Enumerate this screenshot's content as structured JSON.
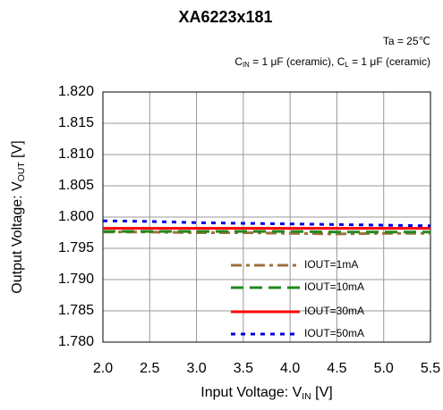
{
  "chart_data": {
    "type": "line",
    "title": "XA6223x181",
    "annotation": "Ta = 25℃",
    "conditions": [
      "C",
      "IN",
      " = 1 μF (ceramic), C",
      "L",
      " = 1 μF (ceramic)"
    ],
    "xlabel": [
      "Input Voltage: V",
      "IN",
      " [V]"
    ],
    "ylabel": [
      "Output Voltage: V",
      "OUT",
      " [V]"
    ],
    "x": [
      2.0,
      2.5,
      3.0,
      3.5,
      4.0,
      4.5,
      5.0,
      5.5
    ],
    "series": [
      {
        "name": "IOUT=1mA",
        "color": "#a0703a",
        "style": "dashdot",
        "values": [
          1.7976,
          1.7976,
          1.7975,
          1.7975,
          1.7974,
          1.7973,
          1.7974,
          1.7974
        ]
      },
      {
        "name": "IOUT=10mA",
        "color": "#1f8a1f",
        "style": "dashed",
        "values": [
          1.7977,
          1.7977,
          1.7977,
          1.7977,
          1.7977,
          1.7976,
          1.7976,
          1.7976
        ]
      },
      {
        "name": "IOUT=30mA",
        "color": "#ff0000",
        "style": "solid",
        "values": [
          1.7982,
          1.7982,
          1.7982,
          1.7982,
          1.7982,
          1.7982,
          1.7982,
          1.7982
        ]
      },
      {
        "name": "IOUT=50mA",
        "color": "#0000dd",
        "style": "dotted",
        "values": [
          1.7994,
          1.7993,
          1.7991,
          1.799,
          1.7989,
          1.7988,
          1.7987,
          1.7986
        ]
      }
    ],
    "xlim": [
      2.0,
      5.5
    ],
    "xticks": [
      {
        "value": 2.0,
        "label": "2.0"
      },
      2.5,
      {
        "value": 3.0,
        "label": "3.0"
      },
      3.5,
      {
        "value": 4.0,
        "label": "4.0"
      },
      4.5,
      {
        "value": 5.0,
        "label": "5.0"
      },
      5.5
    ],
    "ylim": [
      1.78,
      1.82
    ],
    "yticks": [
      {
        "value": 1.78,
        "label": "1.780"
      },
      1.785,
      {
        "value": 1.79,
        "label": "1.790"
      },
      1.795,
      {
        "value": 1.8,
        "label": "1.800"
      },
      1.805,
      {
        "value": 1.81,
        "label": "1.810"
      },
      1.815,
      {
        "value": 1.82,
        "label": "1.820"
      }
    ],
    "grid": true,
    "legend": "lower right"
  }
}
